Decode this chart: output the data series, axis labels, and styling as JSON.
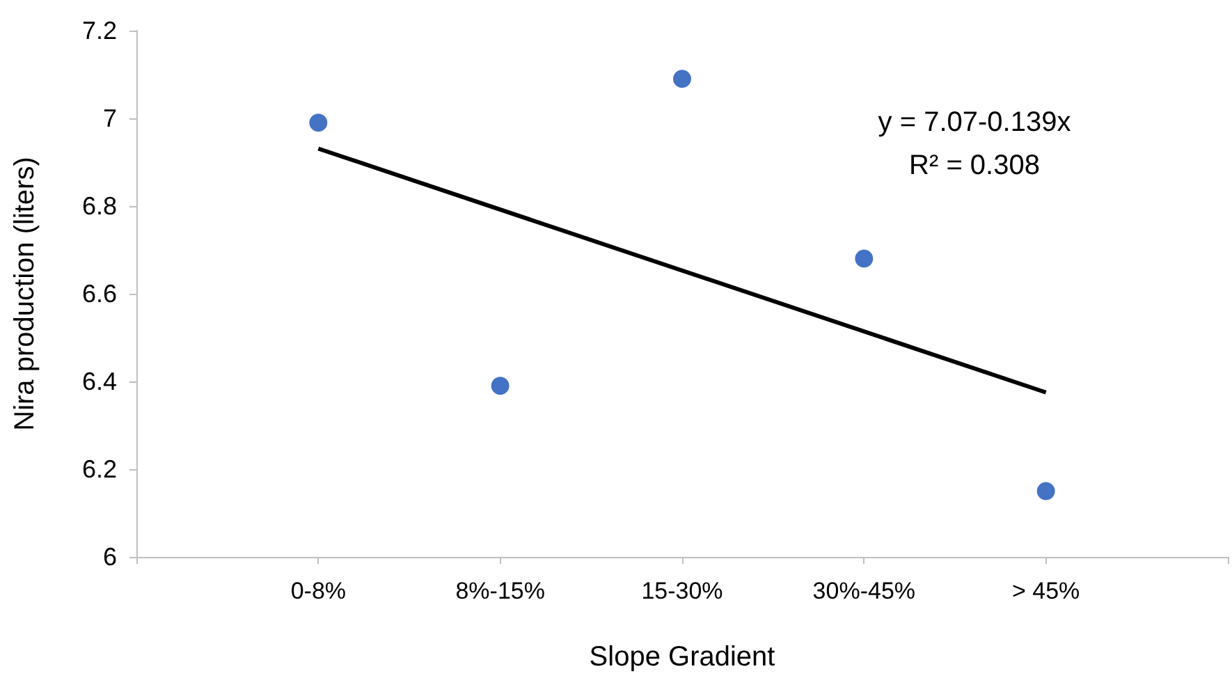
{
  "chart_data": {
    "type": "scatter",
    "xlabel": "Slope Gradient",
    "ylabel": "Nira production (liters)",
    "categories": [
      null,
      "0-8%",
      "8%-15%",
      "15-30%",
      "30%-45%",
      "> 45%",
      null
    ],
    "series": [
      {
        "color": "#4472c4",
        "marker": "circle",
        "values": [
          null,
          6.99,
          6.39,
          7.09,
          6.68,
          6.15,
          null
        ]
      },
      {
        "type": "line",
        "color": "#000000",
        "x": [
          "0-8%",
          "> 45%"
        ],
        "values": [
          6.931,
          6.375
        ],
        "marker": "none"
      }
    ],
    "ylim": [
      6,
      7.2
    ],
    "yticks": [
      6,
      6.2,
      6.4,
      6.6,
      6.8,
      7,
      7.2
    ],
    "grid": false,
    "annotations": [
      "y = 7.07-0.139x",
      "R² = 0.308"
    ]
  }
}
